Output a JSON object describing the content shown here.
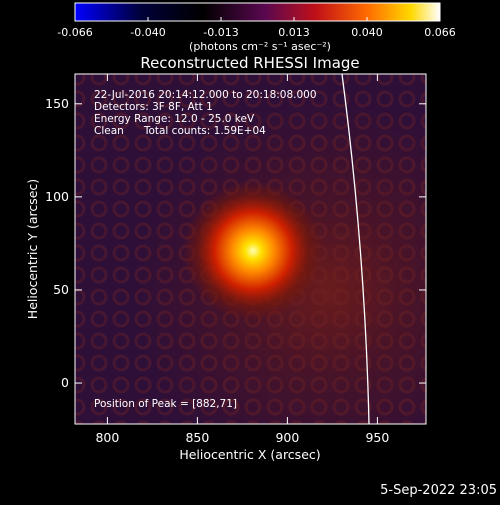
{
  "colorbar": {
    "ticks": [
      "-0.066",
      "-0.040",
      "-0.013",
      "0.013",
      "0.040",
      "0.066"
    ],
    "unit_label": "(photons cm⁻² s⁻¹ asec⁻²)",
    "colors": [
      "#0000ff",
      "#000033",
      "#000000",
      "#6a0a5a",
      "#c01020",
      "#ff6000",
      "#ffd000",
      "#ffffff"
    ]
  },
  "chart_data": {
    "type": "heatmap",
    "title": "Reconstructed RHESSI Image",
    "xlabel": "Heliocentric X (arcsec)",
    "ylabel": "Heliocentric Y (arcsec)",
    "xlim": [
      782,
      977
    ],
    "ylim": [
      -22,
      166
    ],
    "xticks": [
      800,
      850,
      900,
      950
    ],
    "yticks": [
      0,
      50,
      100,
      150
    ],
    "peak": {
      "x": 882,
      "y": 71
    },
    "info_lines": [
      "22-Jul-2016 20:14:12.000 to 20:18:08.000",
      "Detectors: 3F 8F, Att 1",
      "Energy Range: 12.0 - 25.0 keV",
      "Clean      Total counts: 1.59E+04"
    ],
    "peak_label": "Position of Peak = [882,71]"
  },
  "timestamp": "5-Sep-2022 23:05"
}
